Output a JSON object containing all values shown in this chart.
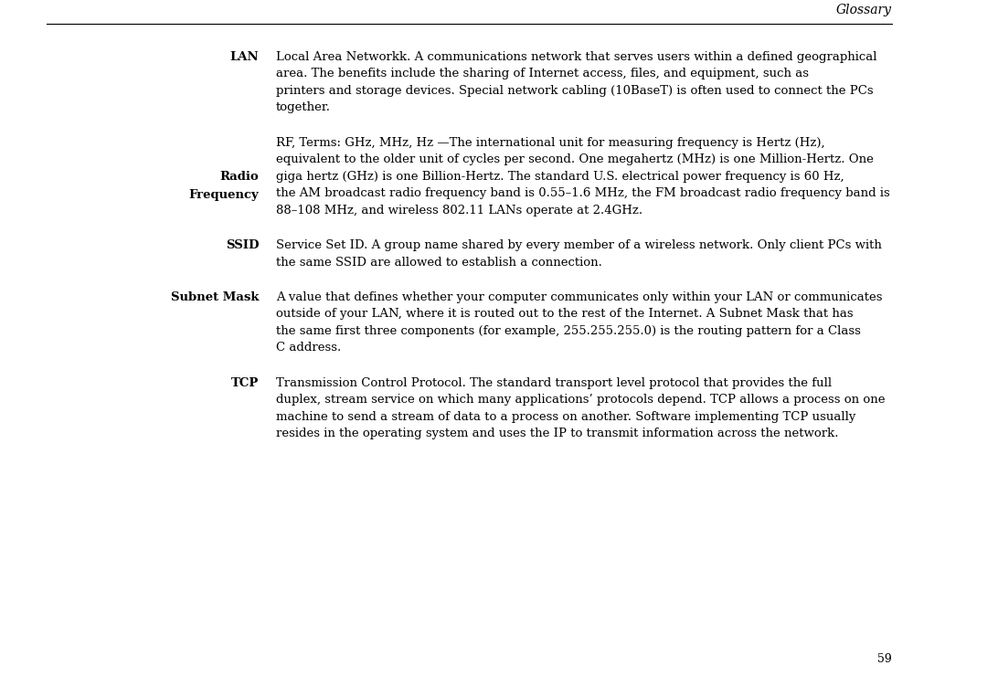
{
  "header_title": "Glossary",
  "page_number": "59",
  "background_color": "#ffffff",
  "text_color": "#000000",
  "entries": [
    {
      "term": "LAN",
      "term_bold": true,
      "body_italic_prefix": "Local Area Network",
      "body_rest": "k. A communications network that serves users within a defined geographical area. The benefits include the sharing of Internet access, files, and equipment, such as printers and storage devices. Special network cabling (10BaseT) is often used to connect the PCs together."
    },
    {
      "term": "Radio\nFrequency",
      "term_bold": true,
      "body_italic_prefix": "RF",
      "body_rest": ", Terms: GHz, MHz, Hz —The international unit for measuring frequency is Hertz (Hz), equivalent to the older unit of cycles per second. One megahertz (MHz) is one Million-Hertz. One giga hertz (GHz) is one Billion-Hertz. The standard U.S. electrical power frequency is 60 Hz, the AM broadcast radio frequency band is 0.55–1.6 MHz, the FM broadcast radio frequency band is 88–108 MHz, and wireless 802.11 LANs operate at 2.4GHz."
    },
    {
      "term": "SSID",
      "term_bold": true,
      "body_italic_prefix": "Service Set I",
      "body_rest": "D. A group name shared by every member of a wireless network. Only client PCs with the same SSID are allowed to establish a connection."
    },
    {
      "term": "Subnet Mask",
      "term_bold": true,
      "body_italic_prefix": "",
      "body_rest": "A value that defines whether your computer communicates only within your LAN or communicates outside of your LAN, where it is routed out to the rest of the Internet. A Subnet Mask that has the same first three components (for example, 255.255.255.0) is the routing pattern for a Class C address."
    },
    {
      "term": "TCP",
      "term_bold": true,
      "body_italic_prefix": "Transmission Control Protocol",
      "body_rest": ". The standard transport level protocol that provides the full duplex, stream service on which many applications’ protocols depend. TCP allows a process on one machine to send a stream of data to a process on another. Software implementing TCP usually resides in the operating system and uses the IP to transmit information across the network."
    }
  ]
}
